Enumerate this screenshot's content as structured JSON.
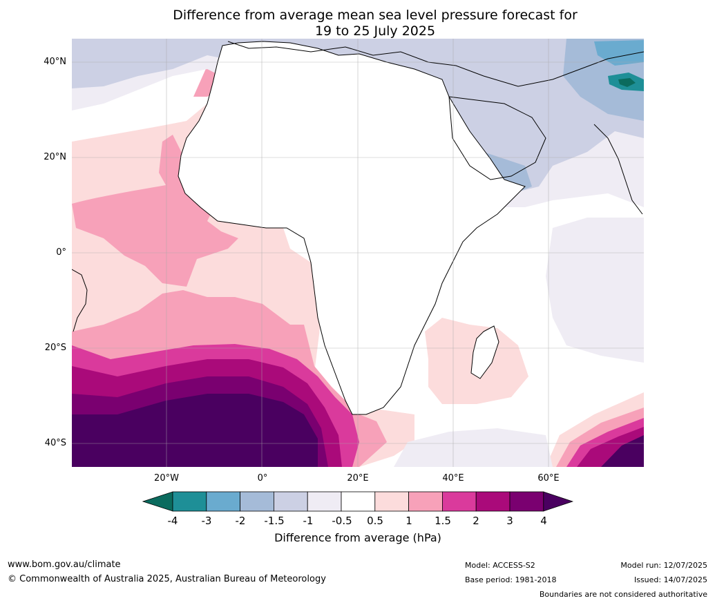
{
  "title_line1": "Difference from average mean sea level pressure forecast for",
  "title_line2": "19 to 25 July 2025",
  "lat_labels": [
    "40°N",
    "20°N",
    "0°",
    "20°S",
    "40°S"
  ],
  "lon_labels": [
    "20°W",
    "0°",
    "20°E",
    "40°E",
    "60°E"
  ],
  "colorbar": {
    "ticks": [
      "-4",
      "-3",
      "-2",
      "-1.5",
      "-1",
      "-0.5",
      "0.5",
      "1",
      "1.5",
      "2",
      "3",
      "4"
    ],
    "colors": [
      "#0b6b5e",
      "#1e8f97",
      "#6aabcf",
      "#a5bbd8",
      "#ccd0e4",
      "#efecf4",
      "#ffffff",
      "#fcdcdc",
      "#f7a1b9",
      "#da3a9c",
      "#aa0a7a",
      "#7a0070",
      "#4a0060"
    ],
    "label": "Difference from average (hPa)"
  },
  "footer": {
    "website": "www.bom.gov.au/climate",
    "copyright": "© Commonwealth of Australia 2025, Australian Bureau of Meteorology",
    "model": "Model: ACCESS-S2",
    "base_period": "Base period: 1981-2018",
    "model_run": "Model run: 12/07/2025",
    "issued": "Issued: 14/07/2025",
    "disclaimer": "Boundaries are not considered authoritative"
  }
}
